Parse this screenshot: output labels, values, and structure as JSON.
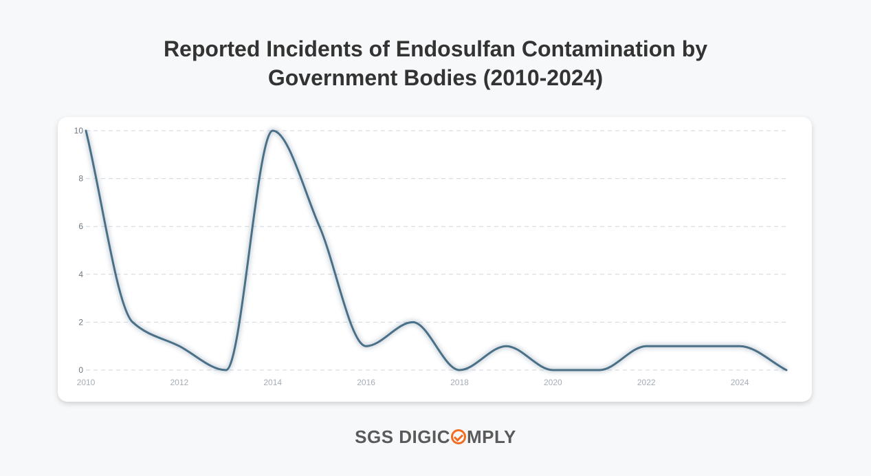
{
  "chart_data": {
    "type": "line",
    "title_line1": "Reported Incidents of Endosulfan Contamination by",
    "title_line2": "Government Bodies (2010-2024)",
    "x": [
      2010,
      2011,
      2012,
      2013,
      2014,
      2015,
      2016,
      2017,
      2018,
      2019,
      2020,
      2021,
      2022,
      2023,
      2024,
      2025
    ],
    "series": [
      {
        "values": [
          10,
          2,
          1,
          0,
          10,
          6,
          1,
          2,
          0,
          1,
          0,
          0,
          1,
          1,
          1,
          0
        ]
      }
    ],
    "xlim": [
      2010,
      2025
    ],
    "ylim": [
      0,
      10
    ],
    "x_ticks": [
      2010,
      2012,
      2014,
      2016,
      2018,
      2020,
      2022,
      2024
    ],
    "y_ticks": [
      0,
      2,
      4,
      6,
      8,
      10
    ],
    "grid": true,
    "line_color": "#4a7087"
  },
  "footer": {
    "logo_part1": "SGS DIGIC",
    "logo_part2": "MPLY"
  }
}
